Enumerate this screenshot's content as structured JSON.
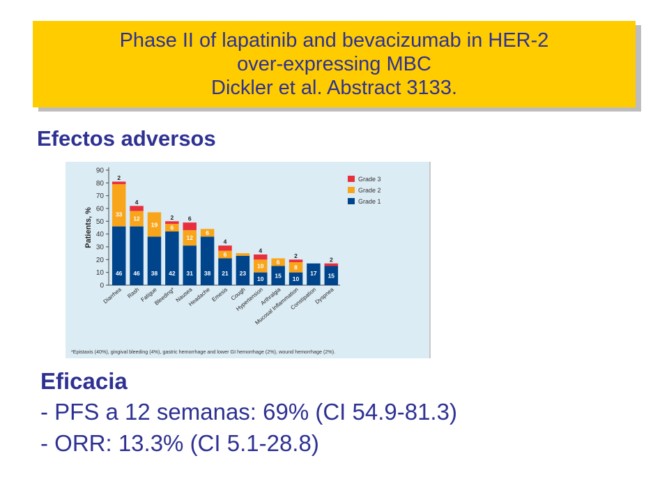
{
  "banner": {
    "line1": "Phase II of lapatinib and bevacizumab in HER-2",
    "line2": "over-expressing MBC",
    "line3": "Dickler et al. Abstract 3133."
  },
  "section_heading": "Efectos adversos",
  "efficacy": {
    "heading": "Eficacia",
    "pfs": "- PFS a 12 semanas: 69% (CI 54.9-81.3)",
    "orr": "- ORR: 13.3% (CI 5.1-28.8)"
  },
  "colors": {
    "grade1": "#00458c",
    "grade2": "#f9a51b",
    "grade3": "#e8303d",
    "banner": "#ffcc00",
    "text": "#2e3192"
  },
  "chart_data": {
    "type": "bar",
    "stacked": true,
    "ylabel": "Patients, %",
    "ylim": [
      0,
      90
    ],
    "yticks": [
      0,
      10,
      20,
      30,
      40,
      50,
      60,
      70,
      80,
      90
    ],
    "categories": [
      "Diarrhea",
      "Rash",
      "Fatigue",
      "Bleeding*",
      "Nausea",
      "Headache",
      "Emesis",
      "Cough",
      "Hypertension",
      "Arthralgia",
      "Mucosal Inflammation",
      "Constipation",
      "Dyspnea"
    ],
    "series": [
      {
        "name": "Grade 1",
        "values": [
          46,
          46,
          38,
          42,
          31,
          38,
          21,
          23,
          10,
          15,
          10,
          17,
          15
        ]
      },
      {
        "name": "Grade 2",
        "values": [
          33,
          12,
          19,
          6,
          12,
          6,
          6,
          2,
          10,
          6,
          8,
          0,
          0
        ]
      },
      {
        "name": "Grade 3",
        "values": [
          2,
          4,
          0,
          2,
          6,
          0,
          4,
          0,
          4,
          0,
          2,
          0,
          2
        ]
      }
    ],
    "legend_position": "top-right",
    "footnote": "*Epistaxis (40%), gingival bleeding (4%), gastric hemorrhage and lower GI hemorrhage (2%), wound hemorrhage (2%)."
  }
}
